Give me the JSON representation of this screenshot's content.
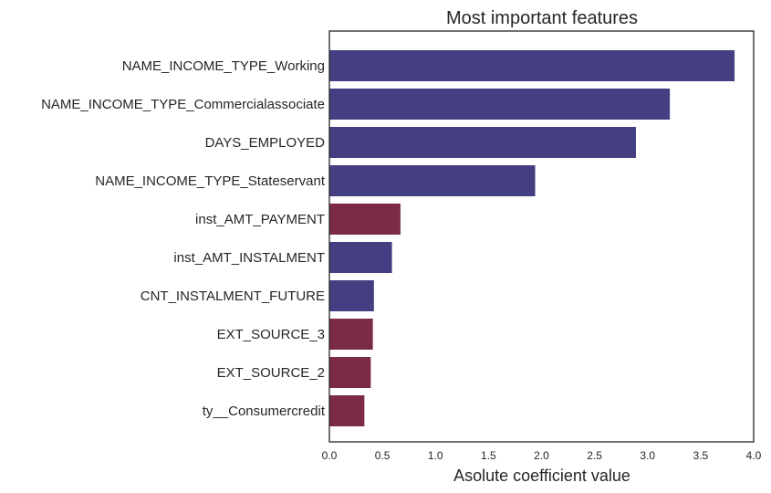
{
  "chart_data": {
    "type": "bar",
    "orientation": "horizontal",
    "title": "Most important features",
    "xlabel": "Asolute coefficient value",
    "ylabel": "",
    "xlim": [
      0,
      4.0
    ],
    "xticks": [
      "0.0",
      "0.5",
      "1.0",
      "1.5",
      "2.0",
      "2.5",
      "3.0",
      "3.5",
      "4.0"
    ],
    "grid": false,
    "categories": [
      "NAME_INCOME_TYPE_Working",
      "NAME_INCOME_TYPE_Commercialassociate",
      "DAYS_EMPLOYED",
      "NAME_INCOME_TYPE_Stateservant",
      "inst_AMT_PAYMENT",
      "inst_AMT_INSTALMENT",
      "CNT_INSTALMENT_FUTURE",
      "EXT_SOURCE_3",
      "EXT_SOURCE_2",
      "ty__Consumercredit"
    ],
    "values": [
      3.82,
      3.21,
      2.89,
      1.94,
      0.67,
      0.59,
      0.42,
      0.41,
      0.39,
      0.33
    ],
    "bar_colors": [
      "#443f82",
      "#443f82",
      "#443f82",
      "#443f82",
      "#7b2b43",
      "#443f82",
      "#443f82",
      "#7b2b43",
      "#7b2b43",
      "#7b2b43"
    ],
    "colors": {
      "positive": "#443f82",
      "negative": "#7b2b43"
    }
  }
}
